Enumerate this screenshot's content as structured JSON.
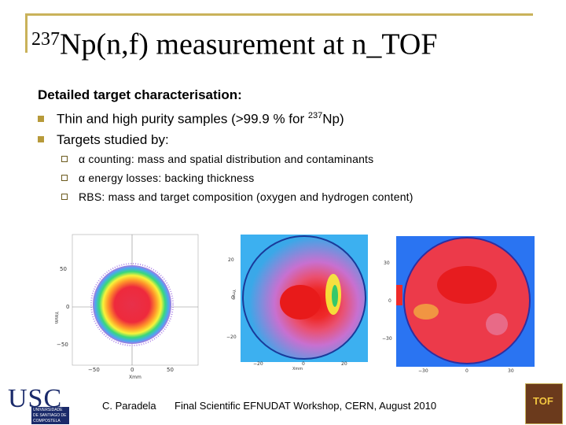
{
  "title": {
    "sup": "237",
    "main": "Np(n,f) measurement at n_TOF"
  },
  "heading": "Detailed target characterisation:",
  "bullets": [
    {
      "text": "Thin and high purity samples (>99.9 % for ",
      "sup": "237",
      "tail": "Np)"
    },
    {
      "text": "Targets studied by:"
    }
  ],
  "subbullets": [
    "α counting: mass and spatial distribution and contaminants",
    "α energy losses: backing thickness",
    "RBS: mass and target composition (oxygen and hydrogen content)"
  ],
  "plots": {
    "p1": {
      "yticks": [
        "50",
        "0",
        "−50"
      ],
      "xticks": [
        "−50",
        "0",
        "50"
      ],
      "xlabel": "Xmm",
      "ylabel": "Ymm"
    },
    "p2": {
      "yticks": [
        "20",
        "0",
        "−20"
      ],
      "xticks": [
        "−20",
        "0",
        "20"
      ],
      "xlabel": "Xmm",
      "ylabel": "Ymm"
    },
    "p3": {
      "yticks": [
        "30",
        "0",
        "−30"
      ],
      "xticks": [
        "−30",
        "0",
        "30"
      ]
    }
  },
  "footer": {
    "author": "C. Paradela",
    "event": "Final Scientific EFNUDAT Workshop, CERN, August 2010"
  },
  "logos": {
    "usc": "USC",
    "usc_sub": "UNIVERSIDADE DE SANTIAGO DE COMPOSTELA",
    "tof": "TOF"
  },
  "colors": {
    "accent": "#c9b25a",
    "bullet": "#b79a3a",
    "usc_blue": "#1a2a6a",
    "tof_brown": "#6b3a1c"
  }
}
